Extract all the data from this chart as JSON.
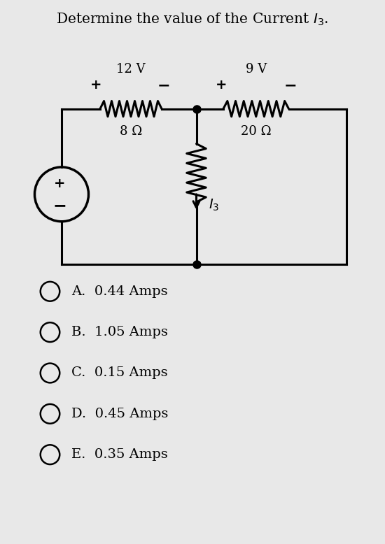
{
  "title": "Determine the value of the Current $I_3$.",
  "title_fontsize": 14.5,
  "bg_color": "#e8e8e8",
  "choices": [
    "A.  0.44 Amps",
    "B.  1.05 Amps",
    "C.  0.15 Amps",
    "D.  0.45 Amps",
    "E.  0.35 Amps"
  ],
  "circuit": {
    "v1_label": "12 V",
    "v2_label": "9 V",
    "r1_label": "8 Ω",
    "r2_label": "20 Ω",
    "i3_label": "$I_3$"
  }
}
